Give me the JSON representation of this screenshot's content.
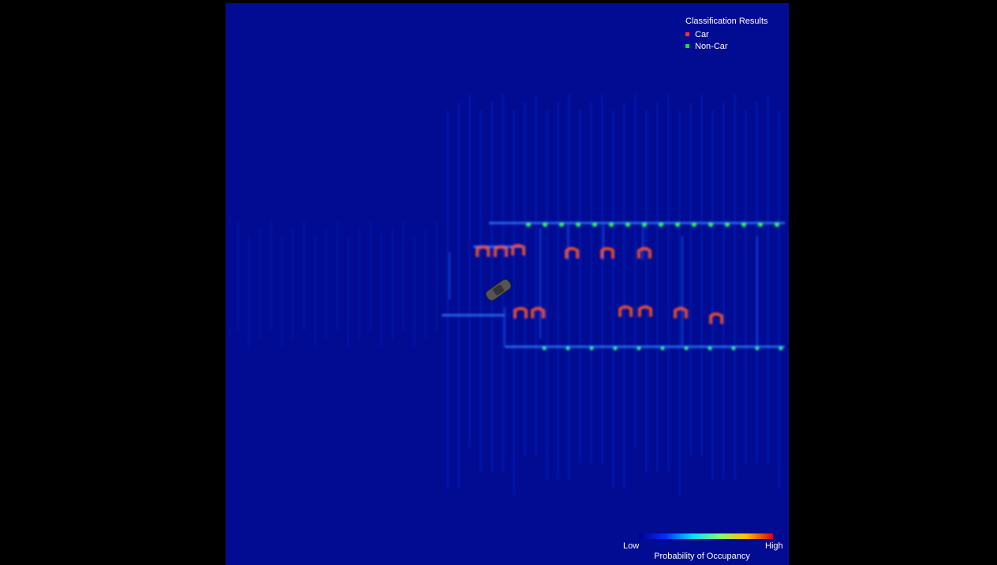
{
  "legend": {
    "title": "Classification Results",
    "items": [
      {
        "label": "Car",
        "color": "#ff3030"
      },
      {
        "label": "Non-Car",
        "color": "#22dd22"
      }
    ]
  },
  "colorbar": {
    "low": "Low",
    "high": "High",
    "label": "Probability of Occupancy"
  }
}
